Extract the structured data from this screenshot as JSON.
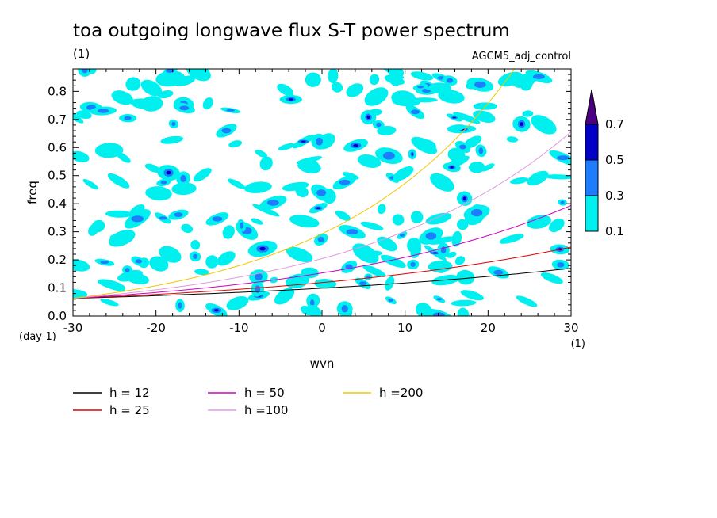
{
  "chart_data": {
    "type": "contour",
    "title": "toa outgoing longwave flux S-T power spectrum",
    "subtitle_left": "(1)",
    "subtitle_right": "AGCM5_adj_control",
    "xlabel": "wvn",
    "ylabel": "freq",
    "x_unit": "(1)",
    "y_unit": "(day-1)",
    "xlim": [
      -30,
      30
    ],
    "ylim": [
      0,
      0.88
    ],
    "x_ticks": [
      -30,
      -20,
      -10,
      0,
      10,
      20,
      30
    ],
    "x_tick_labels": [
      "-30",
      "-20",
      "-10",
      "0",
      "10",
      "20",
      "30"
    ],
    "y_ticks": [
      0.0,
      0.1,
      0.2,
      0.3,
      0.4,
      0.5,
      0.6,
      0.7,
      0.8
    ],
    "y_tick_labels": [
      "0.0",
      "0.1",
      "0.2",
      "0.3",
      "0.4",
      "0.5",
      "0.6",
      "0.7",
      "0.8"
    ],
    "contour_levels": [
      0.1,
      0.3,
      0.5,
      0.7
    ],
    "contour_level_labels": [
      "0.1",
      "0.3",
      "0.5",
      "0.7"
    ],
    "contour_colors": [
      "#00f0f0",
      "#1e7cff",
      "#0000c8",
      "#4b0082"
    ],
    "contour_note": "scattered noisy patches, mostly 0.1-0.3 with isolated higher maxima",
    "series": [
      {
        "name": "h = 12",
        "color": "#000000",
        "g_scale": 1.0
      },
      {
        "name": "h = 25",
        "color": "#e00000",
        "g_scale": 1.2
      },
      {
        "name": "h = 50",
        "color": "#d000c0",
        "g_scale": 1.45
      },
      {
        "name": "h =100",
        "color": "#e09ae0",
        "g_scale": 1.72
      },
      {
        "name": "h =200",
        "color": "#f0c800",
        "g_scale": 2.05
      }
    ],
    "legend_position": "bottom",
    "grid": false
  }
}
